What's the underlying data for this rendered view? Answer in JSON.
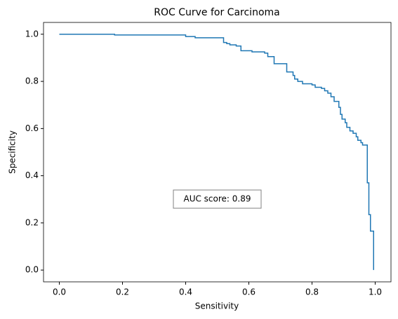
{
  "chart_data": {
    "type": "line",
    "title": "ROC Curve for Carcinoma",
    "x_label": "Sensitivity",
    "y_label": "Specificity",
    "annotation": "AUC score: 0.89",
    "x": [
      0,
      0.175,
      0.175,
      0.4,
      0.4,
      0.43,
      0.43,
      0.52,
      0.52,
      0.53,
      0.53,
      0.54,
      0.54,
      0.56,
      0.56,
      0.575,
      0.575,
      0.61,
      0.61,
      0.65,
      0.65,
      0.66,
      0.66,
      0.68,
      0.68,
      0.72,
      0.72,
      0.74,
      0.74,
      0.745,
      0.745,
      0.755,
      0.755,
      0.77,
      0.77,
      0.8,
      0.8,
      0.81,
      0.81,
      0.83,
      0.83,
      0.84,
      0.84,
      0.85,
      0.85,
      0.86,
      0.86,
      0.87,
      0.87,
      0.885,
      0.885,
      0.89,
      0.89,
      0.895,
      0.895,
      0.905,
      0.905,
      0.91,
      0.91,
      0.92,
      0.92,
      0.93,
      0.93,
      0.94,
      0.94,
      0.945,
      0.945,
      0.955,
      0.955,
      0.96,
      0.96,
      0.975,
      0.975,
      0.98,
      0.98,
      0.985,
      0.985,
      0.995,
      0.995
    ],
    "series": [
      {
        "color": "#1f77b4",
        "values": [
          1,
          1,
          0.997,
          0.997,
          0.99,
          0.99,
          0.985,
          0.985,
          0.965,
          0.965,
          0.96,
          0.96,
          0.955,
          0.955,
          0.95,
          0.95,
          0.93,
          0.93,
          0.925,
          0.925,
          0.92,
          0.92,
          0.905,
          0.905,
          0.875,
          0.875,
          0.84,
          0.84,
          0.825,
          0.825,
          0.81,
          0.81,
          0.8,
          0.8,
          0.79,
          0.79,
          0.785,
          0.785,
          0.775,
          0.775,
          0.77,
          0.77,
          0.76,
          0.76,
          0.75,
          0.75,
          0.735,
          0.735,
          0.715,
          0.715,
          0.69,
          0.69,
          0.66,
          0.66,
          0.64,
          0.64,
          0.625,
          0.625,
          0.605,
          0.605,
          0.59,
          0.59,
          0.58,
          0.58,
          0.565,
          0.565,
          0.55,
          0.55,
          0.54,
          0.54,
          0.53,
          0.53,
          0.37,
          0.37,
          0.235,
          0.235,
          0.165,
          0.165,
          0
        ]
      }
    ],
    "xlim": [
      -0.05,
      1.05
    ],
    "ylim": [
      -0.05,
      1.05
    ],
    "xticks": [
      {
        "value": 0,
        "label": "0.0"
      },
      0.2,
      0.4,
      0.6,
      0.8,
      {
        "value": 1,
        "label": "1.0"
      }
    ],
    "yticks": [
      {
        "value": 0,
        "label": "0.0"
      },
      0.2,
      0.4,
      0.6,
      0.8,
      {
        "value": 1,
        "label": "1.0"
      }
    ],
    "grid": false
  }
}
